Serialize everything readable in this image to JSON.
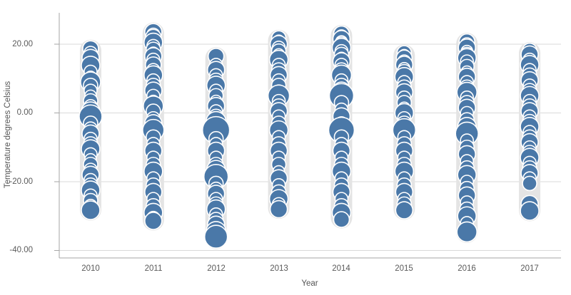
{
  "chart_data": {
    "type": "scatter",
    "subtype": "distribution-plot",
    "title": "",
    "xlabel": "Year",
    "ylabel": "Temperature degrees Celsius",
    "categories": [
      "2010",
      "2011",
      "2012",
      "2013",
      "2014",
      "2015",
      "2016",
      "2017"
    ],
    "y_ticks": [
      {
        "value": 20,
        "label": "20.00"
      },
      {
        "value": 0,
        "label": "0.00"
      },
      {
        "value": -20,
        "label": "-20.00"
      },
      {
        "value": -40,
        "label": "-40.00"
      }
    ],
    "ylim": [
      -42,
      29
    ],
    "grid": true,
    "legend": "none",
    "colors": {
      "point_fill": "#4a78a8",
      "point_stroke": "#ffffff",
      "band": "#e4e4e4",
      "axis_line": "#a6a6a6",
      "grid_line": "#d9d9d9",
      "tick_text": "#5a5a5a",
      "title_text": "#545454",
      "background": "#ffffff"
    },
    "series": [
      {
        "year": "2010",
        "points": [
          [
            18.7,
            11
          ],
          [
            17.5,
            9
          ],
          [
            16,
            12
          ],
          [
            14.5,
            8
          ],
          [
            13.8,
            13
          ],
          [
            12,
            9
          ],
          [
            10.5,
            8
          ],
          [
            9,
            14
          ],
          [
            8,
            10
          ],
          [
            6.5,
            9
          ],
          [
            5,
            8
          ],
          [
            3.5,
            10
          ],
          [
            2,
            9
          ],
          [
            0.5,
            13
          ],
          [
            -1,
            16
          ],
          [
            -3,
            10
          ],
          [
            -4.5,
            9
          ],
          [
            -6,
            12
          ],
          [
            -7.5,
            9
          ],
          [
            -9,
            10
          ],
          [
            -10.5,
            13
          ],
          [
            -12,
            9
          ],
          [
            -13.5,
            8
          ],
          [
            -15,
            10
          ],
          [
            -16.5,
            9
          ],
          [
            -18,
            12
          ],
          [
            -19.5,
            9
          ],
          [
            -21,
            10
          ],
          [
            -22.5,
            13
          ],
          [
            -24,
            9
          ],
          [
            -25.5,
            10
          ],
          [
            -27,
            9
          ],
          [
            -28.3,
            13
          ]
        ]
      },
      {
        "year": "2011",
        "points": [
          [
            23.5,
            12
          ],
          [
            22.8,
            9
          ],
          [
            22,
            11
          ],
          [
            21.2,
            8
          ],
          [
            20.5,
            13
          ],
          [
            19.5,
            9
          ],
          [
            18.5,
            10
          ],
          [
            17.5,
            8
          ],
          [
            16.5,
            12
          ],
          [
            15.5,
            9
          ],
          [
            14,
            11
          ],
          [
            12.5,
            9
          ],
          [
            11,
            13
          ],
          [
            9.5,
            9
          ],
          [
            8,
            10
          ],
          [
            6.5,
            12
          ],
          [
            5,
            9
          ],
          [
            3.5,
            8
          ],
          [
            2,
            14
          ],
          [
            0.5,
            10
          ],
          [
            -1.5,
            9
          ],
          [
            -3,
            12
          ],
          [
            -5,
            15
          ],
          [
            -7,
            10
          ],
          [
            -9,
            9
          ],
          [
            -11,
            12
          ],
          [
            -13,
            9
          ],
          [
            -15,
            10
          ],
          [
            -17,
            13
          ],
          [
            -19,
            9
          ],
          [
            -21,
            10
          ],
          [
            -23,
            12
          ],
          [
            -25,
            9
          ],
          [
            -27,
            10
          ],
          [
            -29,
            13
          ],
          [
            -30.5,
            9
          ],
          [
            -31.4,
            12
          ]
        ]
      },
      {
        "year": "2012",
        "points": [
          [
            16.5,
            11
          ],
          [
            14,
            9
          ],
          [
            12.5,
            12
          ],
          [
            11,
            9
          ],
          [
            9.5,
            10
          ],
          [
            8,
            13
          ],
          [
            6.5,
            9
          ],
          [
            5,
            10
          ],
          [
            3.5,
            8
          ],
          [
            2,
            12
          ],
          [
            0.5,
            9
          ],
          [
            -1,
            10
          ],
          [
            -2.5,
            14
          ],
          [
            -5,
            19
          ],
          [
            -7.5,
            10
          ],
          [
            -9,
            9
          ],
          [
            -11,
            12
          ],
          [
            -13,
            9
          ],
          [
            -15,
            10
          ],
          [
            -16.5,
            13
          ],
          [
            -18.5,
            17
          ],
          [
            -20.5,
            10
          ],
          [
            -22,
            9
          ],
          [
            -23.5,
            12
          ],
          [
            -25,
            9
          ],
          [
            -26.5,
            10
          ],
          [
            -28,
            13
          ],
          [
            -29.5,
            9
          ],
          [
            -31,
            10
          ],
          [
            -32.5,
            12
          ],
          [
            -34.5,
            14
          ],
          [
            -36,
            16
          ]
        ]
      },
      {
        "year": "2013",
        "points": [
          [
            21.8,
            10
          ],
          [
            21,
            8
          ],
          [
            20,
            12
          ],
          [
            19,
            9
          ],
          [
            18,
            10
          ],
          [
            17,
            8
          ],
          [
            15.5,
            13
          ],
          [
            14,
            9
          ],
          [
            12.5,
            10
          ],
          [
            11,
            12
          ],
          [
            9.5,
            9
          ],
          [
            8,
            10
          ],
          [
            6.5,
            8
          ],
          [
            5,
            15
          ],
          [
            3.5,
            9
          ],
          [
            2,
            10
          ],
          [
            0.5,
            12
          ],
          [
            -1,
            9
          ],
          [
            -3,
            10
          ],
          [
            -5,
            13
          ],
          [
            -7,
            9
          ],
          [
            -9,
            10
          ],
          [
            -11,
            12
          ],
          [
            -13,
            9
          ],
          [
            -15,
            10
          ],
          [
            -17,
            8
          ],
          [
            -19,
            12
          ],
          [
            -21,
            9
          ],
          [
            -23,
            10
          ],
          [
            -25,
            13
          ],
          [
            -26.5,
            9
          ],
          [
            -28,
            12
          ]
        ]
      },
      {
        "year": "2014",
        "points": [
          [
            23,
            11
          ],
          [
            22.3,
            9
          ],
          [
            21.5,
            12
          ],
          [
            20.8,
            8
          ],
          [
            20,
            10
          ],
          [
            19,
            13
          ],
          [
            18,
            9
          ],
          [
            17,
            10
          ],
          [
            16,
            8
          ],
          [
            15,
            12
          ],
          [
            14,
            9
          ],
          [
            12.5,
            10
          ],
          [
            11,
            14
          ],
          [
            9.5,
            9
          ],
          [
            8,
            10
          ],
          [
            6.5,
            12
          ],
          [
            5,
            17
          ],
          [
            3,
            10
          ],
          [
            1,
            9
          ],
          [
            -1,
            12
          ],
          [
            -3,
            9
          ],
          [
            -5,
            18
          ],
          [
            -7,
            10
          ],
          [
            -9,
            9
          ],
          [
            -11,
            12
          ],
          [
            -13,
            9
          ],
          [
            -15,
            10
          ],
          [
            -17,
            13
          ],
          [
            -19,
            9
          ],
          [
            -21,
            10
          ],
          [
            -23,
            12
          ],
          [
            -25,
            9
          ],
          [
            -27,
            10
          ],
          [
            -29,
            13
          ],
          [
            -31,
            11
          ]
        ]
      },
      {
        "year": "2015",
        "points": [
          [
            17.5,
            10
          ],
          [
            16.8,
            8
          ],
          [
            16,
            11
          ],
          [
            15,
            9
          ],
          [
            14,
            12
          ],
          [
            13,
            8
          ],
          [
            12,
            10
          ],
          [
            10.5,
            13
          ],
          [
            9,
            9
          ],
          [
            7.5,
            10
          ],
          [
            6,
            12
          ],
          [
            4.5,
            9
          ],
          [
            3,
            10
          ],
          [
            1.5,
            8
          ],
          [
            0,
            13
          ],
          [
            -1.5,
            9
          ],
          [
            -3,
            10
          ],
          [
            -5,
            16
          ],
          [
            -7,
            9
          ],
          [
            -9,
            10
          ],
          [
            -11,
            12
          ],
          [
            -13,
            9
          ],
          [
            -15,
            10
          ],
          [
            -17,
            13
          ],
          [
            -19,
            9
          ],
          [
            -21,
            10
          ],
          [
            -23,
            12
          ],
          [
            -25,
            9
          ],
          [
            -26.5,
            10
          ],
          [
            -28.3,
            12
          ]
        ]
      },
      {
        "year": "2016",
        "points": [
          [
            20.7,
            11
          ],
          [
            20,
            9
          ],
          [
            19,
            12
          ],
          [
            18,
            8
          ],
          [
            17,
            10
          ],
          [
            16,
            13
          ],
          [
            15,
            9
          ],
          [
            13.5,
            10
          ],
          [
            12,
            8
          ],
          [
            10.5,
            12
          ],
          [
            9,
            9
          ],
          [
            7.5,
            10
          ],
          [
            6,
            14
          ],
          [
            4.5,
            9
          ],
          [
            3,
            10
          ],
          [
            1.5,
            12
          ],
          [
            0,
            9
          ],
          [
            -2,
            10
          ],
          [
            -4,
            13
          ],
          [
            -6,
            16
          ],
          [
            -8,
            9
          ],
          [
            -10,
            10
          ],
          [
            -12,
            12
          ],
          [
            -14,
            9
          ],
          [
            -16,
            10
          ],
          [
            -18,
            13
          ],
          [
            -20,
            9
          ],
          [
            -22,
            10
          ],
          [
            -24,
            12
          ],
          [
            -26,
            9
          ],
          [
            -28,
            10
          ],
          [
            -30,
            13
          ],
          [
            -32,
            9
          ],
          [
            -34.6,
            14
          ]
        ]
      },
      {
        "year": "2017",
        "points": [
          [
            18.2,
            10
          ],
          [
            17,
            12
          ],
          [
            15.5,
            9
          ],
          [
            14,
            13
          ],
          [
            12.5,
            9
          ],
          [
            11,
            10
          ],
          [
            9.5,
            12
          ],
          [
            8,
            9
          ],
          [
            6.5,
            10
          ],
          [
            5,
            13
          ],
          [
            3.5,
            9
          ],
          [
            2,
            10
          ],
          [
            0.5,
            12
          ],
          [
            -1,
            9
          ],
          [
            -2.5,
            10
          ],
          [
            -4,
            13
          ],
          [
            -5.5,
            9
          ],
          [
            -7,
            10
          ],
          [
            -8.5,
            12
          ],
          [
            -10,
            9
          ],
          [
            -11.5,
            10
          ],
          [
            -13,
            13
          ],
          [
            -14.5,
            9
          ],
          [
            -16,
            10
          ],
          [
            -17.5,
            12
          ],
          [
            -19,
            9
          ],
          [
            -20.5,
            10
          ],
          [
            -26.5,
            12
          ],
          [
            -28.5,
            13
          ]
        ]
      }
    ]
  }
}
